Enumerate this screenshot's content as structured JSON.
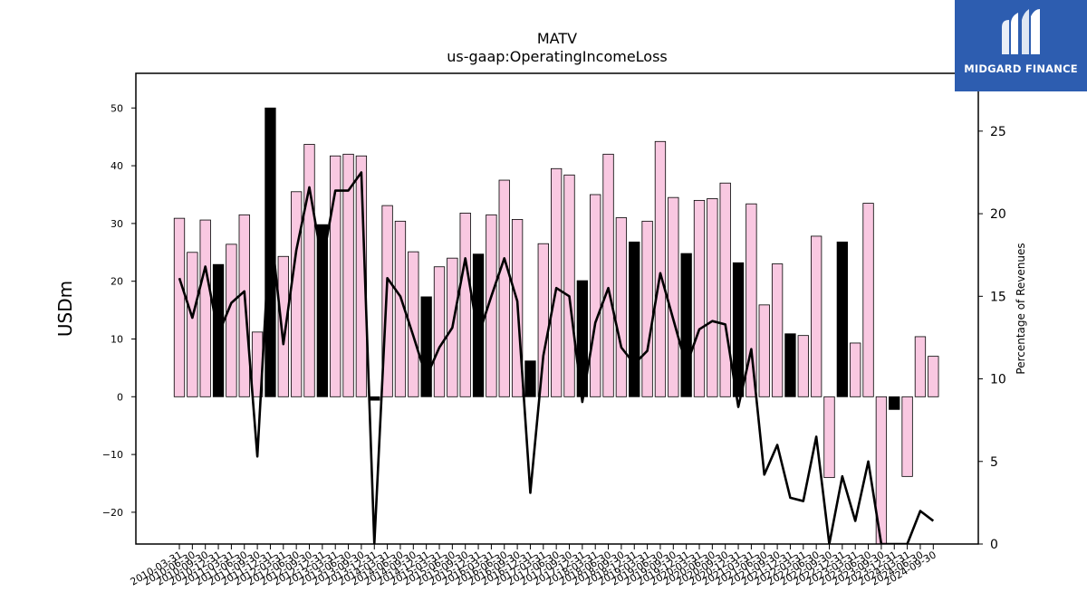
{
  "chart_data": {
    "type": "bar",
    "title": "MATV",
    "subtitle": "us-gaap:OperatingIncomeLoss",
    "ylabel": "USDm",
    "ylabel_right": "Percentage of Revenues",
    "ylim": [
      -25.5,
      56
    ],
    "y2lim": [
      0,
      28.5
    ],
    "yticks": [
      -20,
      -10,
      0,
      10,
      20,
      30,
      40,
      50
    ],
    "y2ticks": [
      0,
      5,
      10,
      15,
      20,
      25
    ],
    "grid": false,
    "bar_colors": {
      "quarterly": "#f9c8e1",
      "annual": "#000000"
    },
    "line_color": "#000000",
    "categories": [
      "2010-03-31",
      "2010-06-30",
      "2010-09-30",
      "2010-12-31",
      "2011-03-31",
      "2011-06-30",
      "2011-09-30",
      "2011-12-31",
      "2012-03-31",
      "2012-06-30",
      "2012-09-30",
      "2012-12-31",
      "2013-03-31",
      "2013-06-30",
      "2013-09-30",
      "2013-12-31",
      "2014-03-31",
      "2014-06-30",
      "2014-09-30",
      "2014-12-31",
      "2015-03-31",
      "2015-06-30",
      "2015-09-30",
      "2015-12-31",
      "2016-03-31",
      "2016-06-30",
      "2016-09-30",
      "2016-12-31",
      "2017-03-31",
      "2017-06-30",
      "2017-09-30",
      "2017-12-31",
      "2018-03-31",
      "2018-06-30",
      "2018-09-30",
      "2018-12-31",
      "2019-03-31",
      "2019-06-30",
      "2019-09-30",
      "2019-12-31",
      "2020-03-31",
      "2020-06-30",
      "2020-09-30",
      "2020-12-31",
      "2021-03-31",
      "2021-06-30",
      "2021-09-30",
      "2021-12-31",
      "2022-03-31",
      "2022-06-30",
      "2022-09-30",
      "2022-12-31",
      "2023-03-31",
      "2023-06-30",
      "2023-09-30",
      "2023-12-31",
      "2024-03-31",
      "2024-06-30",
      "2024-09-30"
    ],
    "values": [
      30.9,
      25.0,
      30.6,
      22.9,
      26.4,
      31.5,
      11.2,
      50.0,
      24.3,
      35.5,
      43.7,
      29.8,
      41.7,
      42.0,
      41.7,
      -0.6,
      33.1,
      30.4,
      25.1,
      17.3,
      22.5,
      24.0,
      31.8,
      24.7,
      31.5,
      37.5,
      30.7,
      6.2,
      26.5,
      39.5,
      38.4,
      20.1,
      35.0,
      42.0,
      31.0,
      26.8,
      30.4,
      44.2,
      34.5,
      24.8,
      34.0,
      34.3,
      37.0,
      23.2,
      33.4,
      15.9,
      23.0,
      10.9,
      10.6,
      27.8,
      -14.0,
      26.8,
      9.3,
      33.5,
      -25.5,
      -2.2,
      -13.8,
      10.4,
      7.0
    ],
    "annual_flags": [
      false,
      false,
      false,
      true,
      false,
      false,
      false,
      true,
      false,
      false,
      false,
      true,
      false,
      false,
      false,
      true,
      false,
      false,
      false,
      true,
      false,
      false,
      false,
      true,
      false,
      false,
      false,
      true,
      false,
      false,
      false,
      true,
      false,
      false,
      false,
      true,
      false,
      false,
      false,
      true,
      false,
      false,
      false,
      true,
      false,
      false,
      false,
      true,
      false,
      false,
      false,
      true,
      false,
      false,
      false,
      true,
      false,
      false,
      false
    ],
    "pct_of_revenues": [
      16.1,
      13.7,
      16.8,
      12.7,
      14.6,
      15.3,
      5.3,
      19.4,
      12.1,
      17.8,
      21.6,
      17.0,
      21.4,
      21.4,
      22.5,
      0.0,
      16.1,
      15.0,
      12.6,
      10.1,
      11.9,
      13.1,
      17.3,
      12.6,
      15.0,
      17.3,
      14.7,
      3.1,
      11.4,
      15.5,
      15.0,
      8.6,
      13.4,
      15.5,
      11.9,
      10.9,
      11.7,
      16.4,
      13.6,
      10.8,
      13.0,
      13.5,
      13.3,
      8.3,
      11.8,
      4.2,
      6.0,
      2.8,
      2.6,
      6.5,
      0.0,
      4.1,
      1.4,
      5.0,
      0.0,
      0.0,
      0.0,
      2.0,
      1.4
    ]
  },
  "logo": {
    "text": "MIDGARD FINANCE",
    "background": "#2d5db0"
  }
}
